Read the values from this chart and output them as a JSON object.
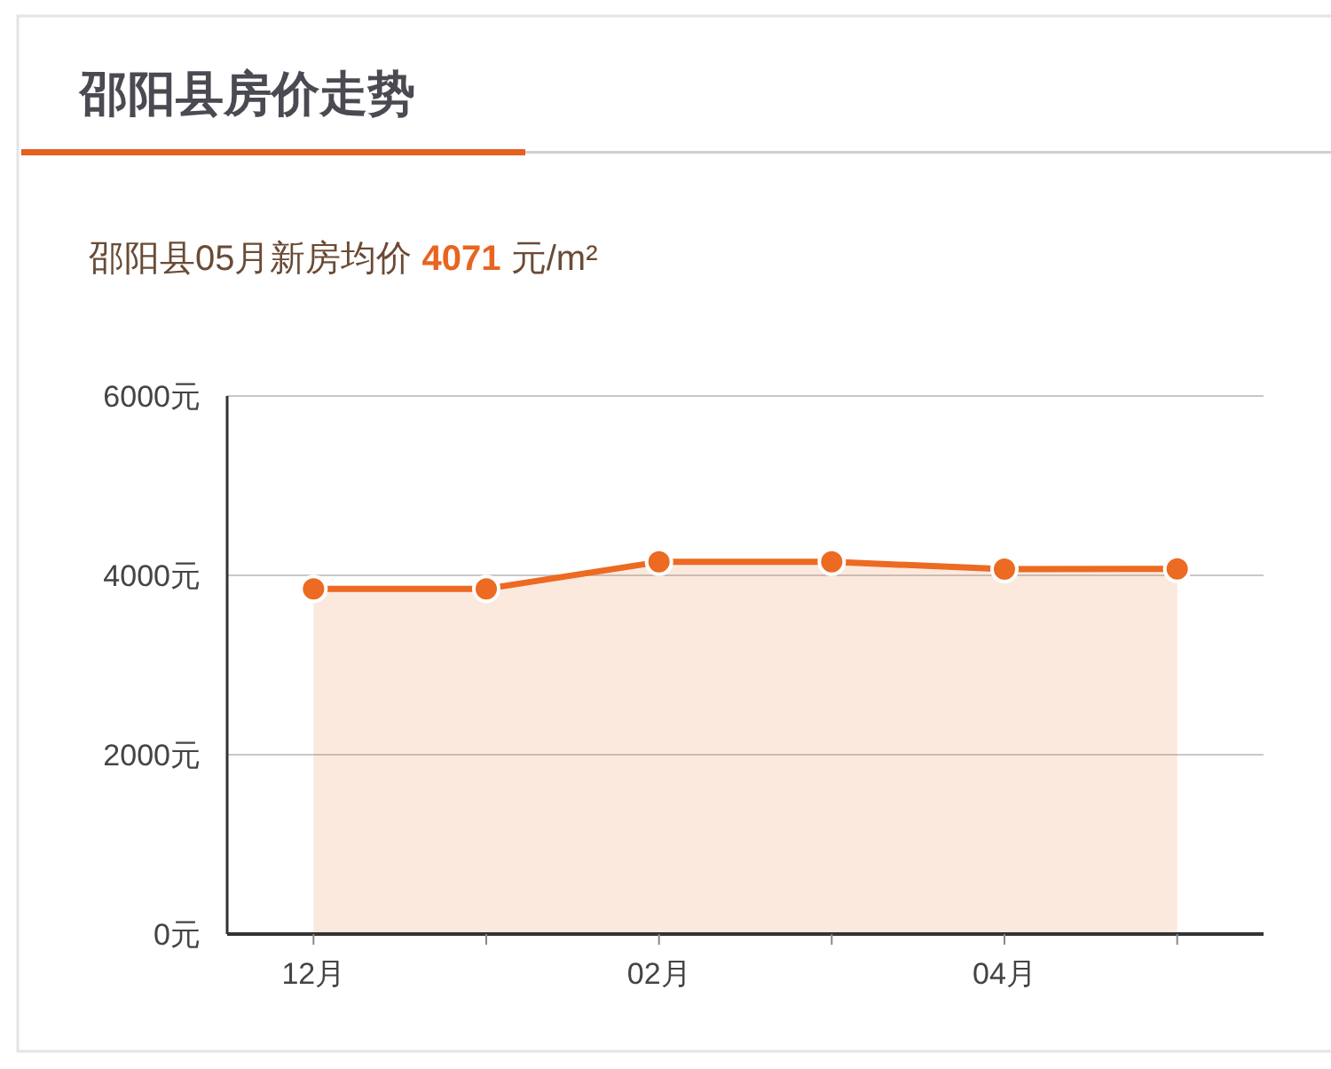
{
  "chart_data": {
    "type": "area",
    "title": "邵阳县房价走势",
    "subtitle": "邵阳县05月新房均价 4071 元/m²",
    "categories": [
      "12月",
      null,
      "02月",
      null,
      "04月",
      null
    ],
    "series": [
      {
        "color": "#ec6a22",
        "values": [
          3850,
          3850,
          4150,
          4150,
          4070,
          4071
        ]
      }
    ],
    "ylim": [
      0,
      6000
    ],
    "yticks": [
      {
        "value": 0,
        "label": "0元"
      },
      {
        "value": 2000,
        "label": "2000元"
      },
      {
        "value": 4000,
        "label": "4000元"
      },
      {
        "value": 6000,
        "label": "6000元"
      }
    ],
    "grid": "y",
    "marker": "circle"
  }
}
